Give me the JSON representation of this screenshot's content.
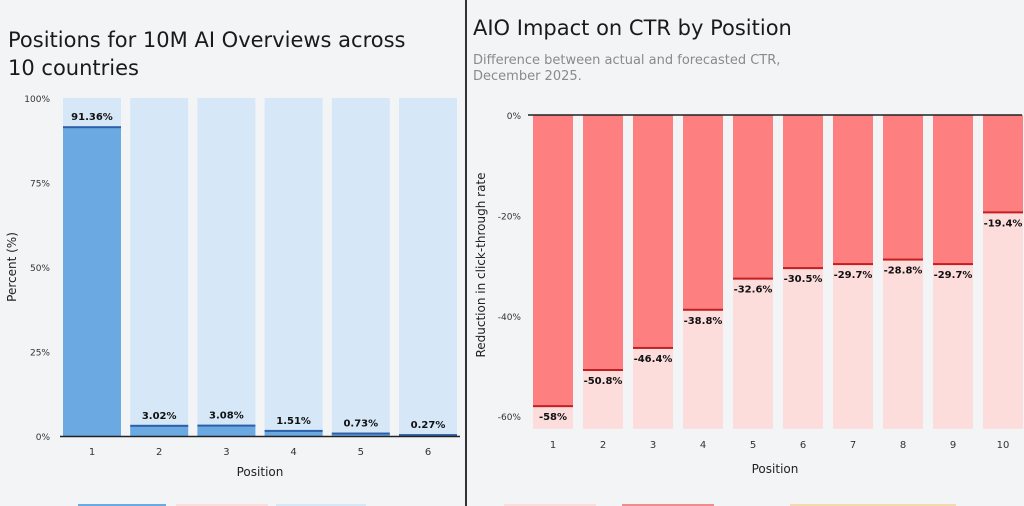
{
  "chart_data": [
    {
      "type": "bar",
      "title": "Positions for 10M AI Overviews across 10 countries",
      "xlabel": "Position",
      "ylabel": "Percent (%)",
      "categories": [
        "1",
        "2",
        "3",
        "4",
        "5",
        "6"
      ],
      "values": [
        91.36,
        3.02,
        3.08,
        1.51,
        0.73,
        0.27
      ],
      "data_labels": [
        "91.36%",
        "3.02%",
        "3.08%",
        "1.51%",
        "0.73%",
        "0.27%"
      ],
      "ylim": [
        0,
        100
      ],
      "yticks": [
        "0%",
        "25%",
        "50%",
        "75%",
        "100%"
      ],
      "ytick_values": [
        0,
        25,
        50,
        75,
        100
      ],
      "grid": false,
      "colors": {
        "bar": "#6aa9e2",
        "bar_top": "#2d5fa8",
        "background_bar": "#d6e8f8"
      }
    },
    {
      "type": "bar",
      "title": "AIO Impact on CTR by Position",
      "subtitle": "Difference between actual and forecasted CTR, December 2025.",
      "xlabel": "Position",
      "ylabel": "Reduction in click-through rate",
      "categories": [
        "1",
        "2",
        "3",
        "4",
        "5",
        "6",
        "7",
        "8",
        "9",
        "10"
      ],
      "values": [
        -58,
        -50.8,
        -46.4,
        -38.8,
        -32.6,
        -30.5,
        -29.7,
        -28.8,
        -29.7,
        -19.4
      ],
      "data_labels": [
        "-58%",
        "-50.8%",
        "-46.4%",
        "-38.8%",
        "-32.6%",
        "-30.5%",
        "-29.7%",
        "-28.8%",
        "-29.7%",
        "-19.4%"
      ],
      "ylim": [
        -62.5,
        0
      ],
      "yticks": [
        "0%",
        "-20%",
        "-40%",
        "-60%"
      ],
      "ytick_values": [
        0,
        -20,
        -40,
        -60
      ],
      "grid": false,
      "colors": {
        "bar": "#fd7f7f",
        "bar_edge": "#c41e1e",
        "background_bar": "#fddcdc"
      }
    }
  ]
}
